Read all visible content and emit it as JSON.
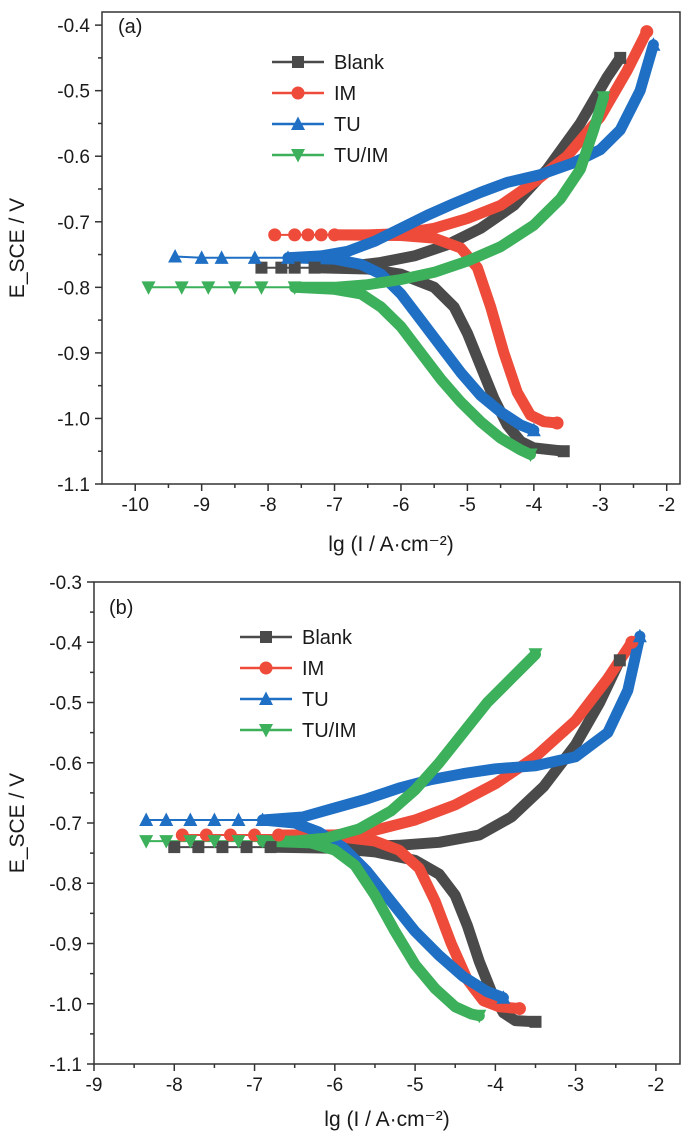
{
  "chart_data": [
    {
      "type": "line",
      "panel_label": "(a)",
      "xlabel": "lg (I / A·cm⁻²)",
      "ylabel": "E_SCE / V",
      "xlim": [
        -10.5,
        -1.8
      ],
      "ylim": [
        -1.1,
        -0.38
      ],
      "xticks": [
        -10,
        -9,
        -8,
        -7,
        -6,
        -5,
        -4,
        -3,
        -2
      ],
      "xtick_labels": [
        "-10",
        "-9",
        "-8",
        "-7",
        "-6",
        "-5",
        "-4",
        "-3",
        "-2"
      ],
      "yticks": [
        -0.4,
        -0.5,
        -0.6,
        -0.7,
        -0.8,
        -0.9,
        -1.0,
        -1.1
      ],
      "ytick_labels": [
        "-0.4",
        "-0.5",
        "-0.6",
        "-0.7",
        "-0.8",
        "-0.9",
        "-1.0",
        "-1.1"
      ],
      "legend_position": "top-center",
      "series": [
        {
          "name": "Blank",
          "color": "#4a4a4a",
          "marker": "square",
          "tail": [
            [
              -8.1,
              -0.77
            ],
            [
              -7.8,
              -0.77
            ],
            [
              -7.6,
              -0.77
            ],
            [
              -7.3,
              -0.77
            ]
          ],
          "anodic": [
            [
              -7.3,
              -0.77
            ],
            [
              -6.8,
              -0.768
            ],
            [
              -6.3,
              -0.762
            ],
            [
              -5.8,
              -0.752
            ],
            [
              -5.3,
              -0.735
            ],
            [
              -4.8,
              -0.71
            ],
            [
              -4.3,
              -0.675
            ],
            [
              -3.8,
              -0.62
            ],
            [
              -3.3,
              -0.55
            ],
            [
              -2.9,
              -0.48
            ],
            [
              -2.7,
              -0.45
            ]
          ],
          "cathodic": [
            [
              -7.3,
              -0.77
            ],
            [
              -6.5,
              -0.772
            ],
            [
              -6.0,
              -0.78
            ],
            [
              -5.5,
              -0.8
            ],
            [
              -5.2,
              -0.83
            ],
            [
              -5.0,
              -0.87
            ],
            [
              -4.8,
              -0.92
            ],
            [
              -4.6,
              -0.97
            ],
            [
              -4.4,
              -1.01
            ],
            [
              -4.2,
              -1.035
            ],
            [
              -4.0,
              -1.045
            ],
            [
              -3.55,
              -1.05
            ]
          ]
        },
        {
          "name": "IM",
          "color": "#ee4b3a",
          "marker": "circle",
          "tail": [
            [
              -7.9,
              -0.72
            ],
            [
              -7.6,
              -0.72
            ],
            [
              -7.4,
              -0.72
            ],
            [
              -7.2,
              -0.72
            ],
            [
              -7.0,
              -0.72
            ]
          ],
          "anodic": [
            [
              -7.0,
              -0.72
            ],
            [
              -6.5,
              -0.72
            ],
            [
              -6.0,
              -0.718
            ],
            [
              -5.5,
              -0.71
            ],
            [
              -5.0,
              -0.695
            ],
            [
              -4.5,
              -0.675
            ],
            [
              -4.0,
              -0.64
            ],
            [
              -3.5,
              -0.6
            ],
            [
              -3.0,
              -0.54
            ],
            [
              -2.6,
              -0.47
            ],
            [
              -2.3,
              -0.41
            ]
          ],
          "cathodic": [
            [
              -7.0,
              -0.72
            ],
            [
              -6.0,
              -0.721
            ],
            [
              -5.5,
              -0.725
            ],
            [
              -5.1,
              -0.74
            ],
            [
              -4.85,
              -0.77
            ],
            [
              -4.65,
              -0.83
            ],
            [
              -4.45,
              -0.9
            ],
            [
              -4.25,
              -0.96
            ],
            [
              -4.05,
              -0.995
            ],
            [
              -3.85,
              -1.005
            ],
            [
              -3.65,
              -1.007
            ]
          ]
        },
        {
          "name": "TU",
          "color": "#1f6fc4",
          "marker": "triangle-up",
          "tail": [
            [
              -9.4,
              -0.753
            ],
            [
              -9.0,
              -0.755
            ],
            [
              -8.7,
              -0.755
            ],
            [
              -8.2,
              -0.755
            ],
            [
              -7.7,
              -0.755
            ]
          ],
          "anodic": [
            [
              -7.7,
              -0.755
            ],
            [
              -7.2,
              -0.752
            ],
            [
              -6.8,
              -0.745
            ],
            [
              -6.4,
              -0.73
            ],
            [
              -6.0,
              -0.71
            ],
            [
              -5.6,
              -0.69
            ],
            [
              -5.2,
              -0.672
            ],
            [
              -4.8,
              -0.655
            ],
            [
              -4.4,
              -0.64
            ],
            [
              -3.9,
              -0.628
            ],
            [
              -3.4,
              -0.61
            ],
            [
              -3.0,
              -0.59
            ],
            [
              -2.7,
              -0.56
            ],
            [
              -2.4,
              -0.5
            ],
            [
              -2.2,
              -0.43
            ]
          ],
          "cathodic": [
            [
              -7.7,
              -0.755
            ],
            [
              -7.0,
              -0.757
            ],
            [
              -6.6,
              -0.765
            ],
            [
              -6.3,
              -0.78
            ],
            [
              -6.0,
              -0.81
            ],
            [
              -5.7,
              -0.85
            ],
            [
              -5.4,
              -0.89
            ],
            [
              -5.1,
              -0.93
            ],
            [
              -4.8,
              -0.965
            ],
            [
              -4.5,
              -0.99
            ],
            [
              -4.2,
              -1.01
            ],
            [
              -4.0,
              -1.018
            ]
          ]
        },
        {
          "name": "TU/IM",
          "color": "#3cb05a",
          "marker": "triangle-down",
          "tail": [
            [
              -9.8,
              -0.8
            ],
            [
              -9.3,
              -0.8
            ],
            [
              -8.9,
              -0.8
            ],
            [
              -8.5,
              -0.8
            ],
            [
              -8.1,
              -0.8
            ],
            [
              -7.6,
              -0.8
            ]
          ],
          "anodic": [
            [
              -7.6,
              -0.8
            ],
            [
              -7.0,
              -0.8
            ],
            [
              -6.5,
              -0.796
            ],
            [
              -6.0,
              -0.788
            ],
            [
              -5.5,
              -0.777
            ],
            [
              -5.0,
              -0.76
            ],
            [
              -4.5,
              -0.738
            ],
            [
              -4.0,
              -0.705
            ],
            [
              -3.6,
              -0.665
            ],
            [
              -3.3,
              -0.62
            ],
            [
              -3.1,
              -0.56
            ],
            [
              -2.95,
              -0.51
            ]
          ],
          "cathodic": [
            [
              -7.6,
              -0.8
            ],
            [
              -7.0,
              -0.803
            ],
            [
              -6.6,
              -0.81
            ],
            [
              -6.3,
              -0.83
            ],
            [
              -6.0,
              -0.86
            ],
            [
              -5.7,
              -0.9
            ],
            [
              -5.4,
              -0.94
            ],
            [
              -5.1,
              -0.975
            ],
            [
              -4.8,
              -1.005
            ],
            [
              -4.5,
              -1.03
            ],
            [
              -4.2,
              -1.048
            ],
            [
              -4.05,
              -1.055
            ]
          ]
        }
      ]
    },
    {
      "type": "line",
      "panel_label": "(b)",
      "xlabel": "lg (I / A·cm⁻²)",
      "ylabel": "E_SCE / V",
      "xlim": [
        -9.0,
        -1.7
      ],
      "ylim": [
        -1.1,
        -0.3
      ],
      "xticks": [
        -9,
        -8,
        -7,
        -6,
        -5,
        -4,
        -3,
        -2
      ],
      "xtick_labels": [
        "-9",
        "-8",
        "-7",
        "-6",
        "-5",
        "-4",
        "-3",
        "-2"
      ],
      "yticks": [
        -0.3,
        -0.4,
        -0.5,
        -0.6,
        -0.7,
        -0.8,
        -0.9,
        -1.0,
        -1.1
      ],
      "ytick_labels": [
        "-0.3",
        "-0.4",
        "-0.5",
        "-0.6",
        "-0.7",
        "-0.8",
        "-0.9",
        "-1.0",
        "-1.1"
      ],
      "legend_position": "top-center",
      "series": [
        {
          "name": "Blank",
          "color": "#4a4a4a",
          "marker": "square",
          "tail": [
            [
              -8.0,
              -0.74
            ],
            [
              -7.7,
              -0.74
            ],
            [
              -7.4,
              -0.74
            ],
            [
              -7.1,
              -0.74
            ],
            [
              -6.8,
              -0.74
            ]
          ],
          "anodic": [
            [
              -6.8,
              -0.74
            ],
            [
              -6.2,
              -0.74
            ],
            [
              -5.7,
              -0.739
            ],
            [
              -5.2,
              -0.737
            ],
            [
              -4.7,
              -0.732
            ],
            [
              -4.2,
              -0.72
            ],
            [
              -3.8,
              -0.69
            ],
            [
              -3.4,
              -0.64
            ],
            [
              -3.0,
              -0.57
            ],
            [
              -2.7,
              -0.5
            ],
            [
              -2.45,
              -0.43
            ]
          ],
          "cathodic": [
            [
              -6.8,
              -0.74
            ],
            [
              -6.0,
              -0.742
            ],
            [
              -5.5,
              -0.748
            ],
            [
              -5.0,
              -0.762
            ],
            [
              -4.7,
              -0.785
            ],
            [
              -4.5,
              -0.82
            ],
            [
              -4.35,
              -0.87
            ],
            [
              -4.2,
              -0.93
            ],
            [
              -4.05,
              -0.98
            ],
            [
              -3.9,
              -1.015
            ],
            [
              -3.75,
              -1.028
            ],
            [
              -3.5,
              -1.03
            ]
          ]
        },
        {
          "name": "IM",
          "color": "#ee4b3a",
          "marker": "circle",
          "tail": [
            [
              -7.9,
              -0.72
            ],
            [
              -7.6,
              -0.72
            ],
            [
              -7.3,
              -0.72
            ],
            [
              -7.0,
              -0.72
            ],
            [
              -6.7,
              -0.72
            ]
          ],
          "anodic": [
            [
              -6.7,
              -0.72
            ],
            [
              -6.0,
              -0.72
            ],
            [
              -5.5,
              -0.712
            ],
            [
              -5.0,
              -0.695
            ],
            [
              -4.5,
              -0.67
            ],
            [
              -4.0,
              -0.635
            ],
            [
              -3.5,
              -0.59
            ],
            [
              -3.0,
              -0.53
            ],
            [
              -2.6,
              -0.46
            ],
            [
              -2.3,
              -0.4
            ]
          ],
          "cathodic": [
            [
              -6.7,
              -0.72
            ],
            [
              -6.0,
              -0.722
            ],
            [
              -5.5,
              -0.73
            ],
            [
              -5.2,
              -0.745
            ],
            [
              -4.95,
              -0.775
            ],
            [
              -4.75,
              -0.83
            ],
            [
              -4.55,
              -0.9
            ],
            [
              -4.35,
              -0.96
            ],
            [
              -4.15,
              -0.995
            ],
            [
              -3.95,
              -1.005
            ],
            [
              -3.7,
              -1.008
            ]
          ]
        },
        {
          "name": "TU",
          "color": "#1f6fc4",
          "marker": "triangle-up",
          "tail": [
            [
              -8.35,
              -0.695
            ],
            [
              -8.1,
              -0.695
            ],
            [
              -7.8,
              -0.695
            ],
            [
              -7.5,
              -0.695
            ],
            [
              -7.2,
              -0.695
            ],
            [
              -6.9,
              -0.695
            ]
          ],
          "anodic": [
            [
              -6.9,
              -0.695
            ],
            [
              -6.4,
              -0.69
            ],
            [
              -6.0,
              -0.675
            ],
            [
              -5.6,
              -0.66
            ],
            [
              -5.2,
              -0.642
            ],
            [
              -4.8,
              -0.628
            ],
            [
              -4.4,
              -0.618
            ],
            [
              -4.0,
              -0.61
            ],
            [
              -3.5,
              -0.605
            ],
            [
              -3.0,
              -0.59
            ],
            [
              -2.6,
              -0.55
            ],
            [
              -2.35,
              -0.48
            ],
            [
              -2.2,
              -0.39
            ]
          ],
          "cathodic": [
            [
              -6.9,
              -0.695
            ],
            [
              -6.5,
              -0.7
            ],
            [
              -6.2,
              -0.715
            ],
            [
              -5.9,
              -0.74
            ],
            [
              -5.6,
              -0.78
            ],
            [
              -5.3,
              -0.83
            ],
            [
              -5.0,
              -0.88
            ],
            [
              -4.7,
              -0.92
            ],
            [
              -4.4,
              -0.955
            ],
            [
              -4.1,
              -0.98
            ],
            [
              -3.9,
              -0.99
            ]
          ]
        },
        {
          "name": "TU/IM",
          "color": "#3cb05a",
          "marker": "triangle-down",
          "tail": [
            [
              -8.35,
              -0.73
            ],
            [
              -8.1,
              -0.73
            ],
            [
              -7.8,
              -0.73
            ],
            [
              -7.5,
              -0.73
            ],
            [
              -7.2,
              -0.73
            ],
            [
              -6.9,
              -0.73
            ]
          ],
          "anodic": [
            [
              -6.9,
              -0.73
            ],
            [
              -6.5,
              -0.73
            ],
            [
              -6.1,
              -0.725
            ],
            [
              -5.7,
              -0.71
            ],
            [
              -5.3,
              -0.68
            ],
            [
              -5.0,
              -0.645
            ],
            [
              -4.7,
              -0.6
            ],
            [
              -4.4,
              -0.55
            ],
            [
              -4.1,
              -0.5
            ],
            [
              -3.8,
              -0.46
            ],
            [
              -3.5,
              -0.42
            ]
          ],
          "cathodic": [
            [
              -6.9,
              -0.73
            ],
            [
              -6.3,
              -0.733
            ],
            [
              -6.0,
              -0.745
            ],
            [
              -5.75,
              -0.77
            ],
            [
              -5.5,
              -0.82
            ],
            [
              -5.25,
              -0.88
            ],
            [
              -5.0,
              -0.935
            ],
            [
              -4.75,
              -0.975
            ],
            [
              -4.5,
              -1.005
            ],
            [
              -4.3,
              -1.017
            ],
            [
              -4.2,
              -1.02
            ]
          ]
        }
      ]
    }
  ]
}
